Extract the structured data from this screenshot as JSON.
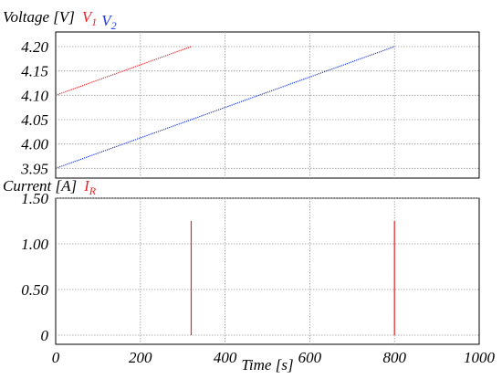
{
  "chart_data": [
    {
      "type": "line",
      "title": "",
      "ylabel": "Voltage [V]",
      "xlabel": "",
      "xlim": [
        0,
        1000
      ],
      "ylim": [
        3.93,
        4.23
      ],
      "x_ticks": [
        0,
        200,
        400,
        600,
        800,
        1000
      ],
      "y_ticks": [
        3.95,
        4.0,
        4.05,
        4.1,
        4.15,
        4.2
      ],
      "y_tick_labels": [
        "3.95",
        "4.00",
        "4.05",
        "4.10",
        "4.15",
        "4.20"
      ],
      "grid": true,
      "legend": {
        "placement": "inline-after-ylabel"
      },
      "series": [
        {
          "name": "V",
          "subscript": "1",
          "color": "#e8262a",
          "line_style": "dotted",
          "points": [
            {
              "x": 0,
              "y": 4.1
            },
            {
              "x": 320,
              "y": 4.2
            }
          ]
        },
        {
          "name": "V",
          "subscript": "2",
          "color": "#1f3be0",
          "line_style": "dotted",
          "points": [
            {
              "x": 0,
              "y": 3.95
            },
            {
              "x": 800,
              "y": 4.2
            }
          ]
        }
      ]
    },
    {
      "type": "line",
      "title": "",
      "ylabel": "Current [A]",
      "xlabel": "Time [s]",
      "xlim": [
        0,
        1000
      ],
      "ylim": [
        -0.1,
        1.5
      ],
      "x_ticks": [
        0,
        200,
        400,
        600,
        800,
        1000
      ],
      "x_tick_labels": [
        "0",
        "200",
        "400",
        "600",
        "800",
        "1000"
      ],
      "y_ticks": [
        0,
        0.5,
        1.0,
        1.5
      ],
      "y_tick_labels": [
        "0",
        "0.50",
        "1.00",
        "1.50"
      ],
      "grid": true,
      "legend": {
        "placement": "inline-after-ylabel"
      },
      "series": [
        {
          "name": "I",
          "subscript": "R",
          "color": "#e8262a",
          "line_style": "solid",
          "pulses": [
            {
              "x": 320,
              "y0": 0,
              "y1": 1.25
            },
            {
              "x": 800,
              "y0": 0,
              "y1": 1.25
            }
          ]
        }
      ]
    }
  ]
}
